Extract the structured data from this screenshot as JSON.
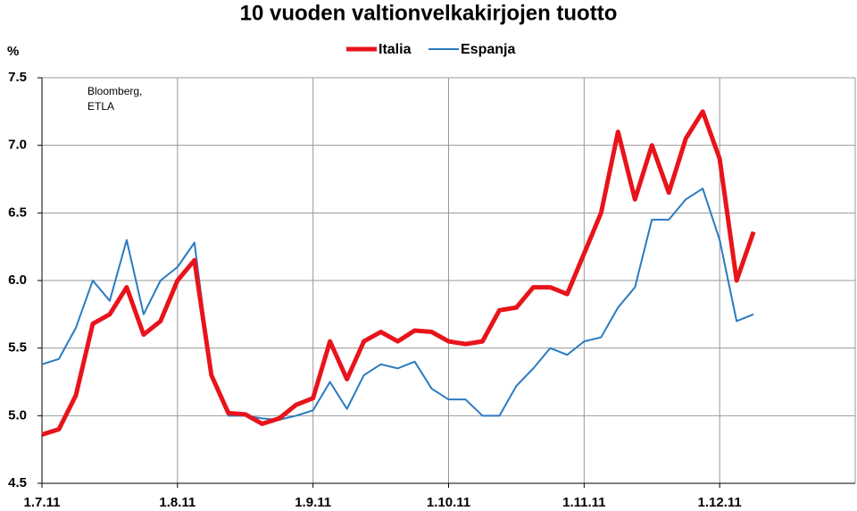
{
  "chart_data": {
    "type": "line",
    "title": "10 vuoden valtionvelkakirjojen tuotto",
    "y_label": "%",
    "annotation": [
      "Bloomberg,",
      "ETLA"
    ],
    "categories": [
      "1.7.11",
      null,
      null,
      null,
      null,
      null,
      null,
      null,
      "1.8.11",
      null,
      null,
      null,
      null,
      null,
      null,
      null,
      "1.9.11",
      null,
      null,
      null,
      null,
      null,
      null,
      null,
      "1.10.11",
      null,
      null,
      null,
      null,
      null,
      null,
      null,
      "1.11.11",
      null,
      null,
      null,
      null,
      null,
      null,
      null,
      "1.12.11",
      null,
      null,
      null,
      null,
      null,
      null,
      null
    ],
    "series": [
      {
        "name": "Italia",
        "color": "#e8141b",
        "width": 5,
        "values": [
          4.86,
          4.9,
          5.15,
          5.68,
          5.75,
          5.95,
          5.6,
          5.7,
          6.0,
          6.15,
          5.3,
          5.02,
          5.01,
          4.94,
          4.98,
          5.08,
          5.13,
          5.55,
          5.27,
          5.55,
          5.62,
          5.55,
          5.63,
          5.62,
          5.55,
          5.53,
          5.55,
          5.78,
          5.8,
          5.95,
          5.95,
          5.9,
          6.2,
          6.5,
          7.1,
          6.6,
          7.0,
          6.65,
          7.05,
          7.25,
          6.9,
          6.0,
          6.36,
          null,
          null,
          null,
          null,
          null
        ]
      },
      {
        "name": "Espanja",
        "color": "#2a7bc0",
        "width": 2,
        "values": [
          5.38,
          5.42,
          5.65,
          6.0,
          5.85,
          6.3,
          5.75,
          6.0,
          6.1,
          6.28,
          5.3,
          5.0,
          5.0,
          4.98,
          4.97,
          5.0,
          5.04,
          5.25,
          5.05,
          5.3,
          5.38,
          5.35,
          5.4,
          5.2,
          5.12,
          5.12,
          5.0,
          5.0,
          5.22,
          5.35,
          5.5,
          5.45,
          5.55,
          5.58,
          5.8,
          5.95,
          6.45,
          6.45,
          6.6,
          6.68,
          6.3,
          5.7,
          5.75,
          null,
          null,
          null,
          null,
          null
        ]
      }
    ],
    "ylim": [
      4.5,
      7.5
    ],
    "yticks": [
      4.5,
      {
        "value": 5,
        "label": "5.0"
      },
      5.5,
      {
        "value": 6,
        "label": "6.0"
      },
      6.5,
      {
        "value": 7,
        "label": "7.0"
      },
      7.5
    ],
    "grid": true
  }
}
